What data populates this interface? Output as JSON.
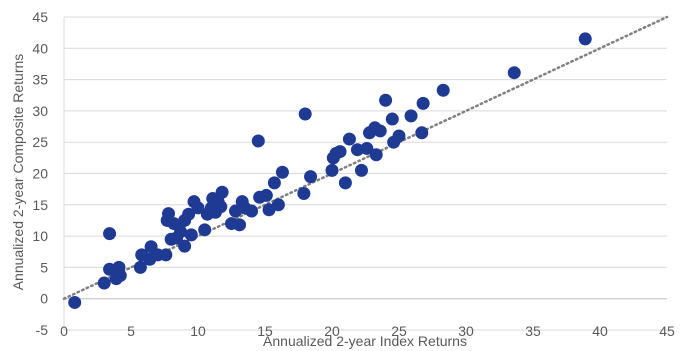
{
  "chart_data": {
    "type": "scatter",
    "xlabel": "Annualized 2-year Index Returns",
    "ylabel": "Annualized 2-year Composite Returns",
    "xlim": [
      0,
      45
    ],
    "ylim": [
      -5,
      45
    ],
    "x_ticks": [
      0,
      5,
      10,
      15,
      20,
      25,
      30,
      35,
      40,
      45
    ],
    "y_ticks": [
      -5,
      0,
      5,
      10,
      15,
      20,
      25,
      30,
      35,
      40,
      45
    ],
    "grid": "horizontal",
    "trendline": {
      "style": "dotted",
      "x": [
        0,
        45
      ],
      "y": [
        0,
        45
      ]
    },
    "marker_color": "#1f3a93",
    "trendline_color": "#808080",
    "points": [
      [
        0.8,
        -0.6
      ],
      [
        3.0,
        2.5
      ],
      [
        3.4,
        4.7
      ],
      [
        3.4,
        10.4
      ],
      [
        3.9,
        3.2
      ],
      [
        4.1,
        5.0
      ],
      [
        4.2,
        3.7
      ],
      [
        5.7,
        5.0
      ],
      [
        5.8,
        7.0
      ],
      [
        6.4,
        6.3
      ],
      [
        6.5,
        8.3
      ],
      [
        7.0,
        7.0
      ],
      [
        7.6,
        7.0
      ],
      [
        7.7,
        12.5
      ],
      [
        7.8,
        13.6
      ],
      [
        8.0,
        9.5
      ],
      [
        8.2,
        12.0
      ],
      [
        8.4,
        9.7
      ],
      [
        8.7,
        10.7
      ],
      [
        9.0,
        8.4
      ],
      [
        9.0,
        12.5
      ],
      [
        9.3,
        13.5
      ],
      [
        9.5,
        10.2
      ],
      [
        9.7,
        15.5
      ],
      [
        10.0,
        14.5
      ],
      [
        10.5,
        11.0
      ],
      [
        10.7,
        13.5
      ],
      [
        11.0,
        14.5
      ],
      [
        11.1,
        16.0
      ],
      [
        11.3,
        13.8
      ],
      [
        11.5,
        15.5
      ],
      [
        11.7,
        14.7
      ],
      [
        11.8,
        17.0
      ],
      [
        12.5,
        12.0
      ],
      [
        12.8,
        14.0
      ],
      [
        13.1,
        11.8
      ],
      [
        13.3,
        15.5
      ],
      [
        13.5,
        14.5
      ],
      [
        14.0,
        14.0
      ],
      [
        14.5,
        25.2
      ],
      [
        14.6,
        16.2
      ],
      [
        15.1,
        16.5
      ],
      [
        15.3,
        14.2
      ],
      [
        15.7,
        18.5
      ],
      [
        16.0,
        15.0
      ],
      [
        16.3,
        20.2
      ],
      [
        17.9,
        16.8
      ],
      [
        18.0,
        29.5
      ],
      [
        18.4,
        19.5
      ],
      [
        20.0,
        20.5
      ],
      [
        20.1,
        22.5
      ],
      [
        20.3,
        23.2
      ],
      [
        20.6,
        23.5
      ],
      [
        21.0,
        18.5
      ],
      [
        21.3,
        25.5
      ],
      [
        21.9,
        23.8
      ],
      [
        22.2,
        20.5
      ],
      [
        22.6,
        24.0
      ],
      [
        22.8,
        26.5
      ],
      [
        23.2,
        27.3
      ],
      [
        23.3,
        23.0
      ],
      [
        23.6,
        26.8
      ],
      [
        24.0,
        31.7
      ],
      [
        24.5,
        28.7
      ],
      [
        24.6,
        25.0
      ],
      [
        25.0,
        26.0
      ],
      [
        25.9,
        29.2
      ],
      [
        26.7,
        26.5
      ],
      [
        26.8,
        31.2
      ],
      [
        28.3,
        33.3
      ],
      [
        33.6,
        36.1
      ],
      [
        38.9,
        41.5
      ]
    ]
  }
}
